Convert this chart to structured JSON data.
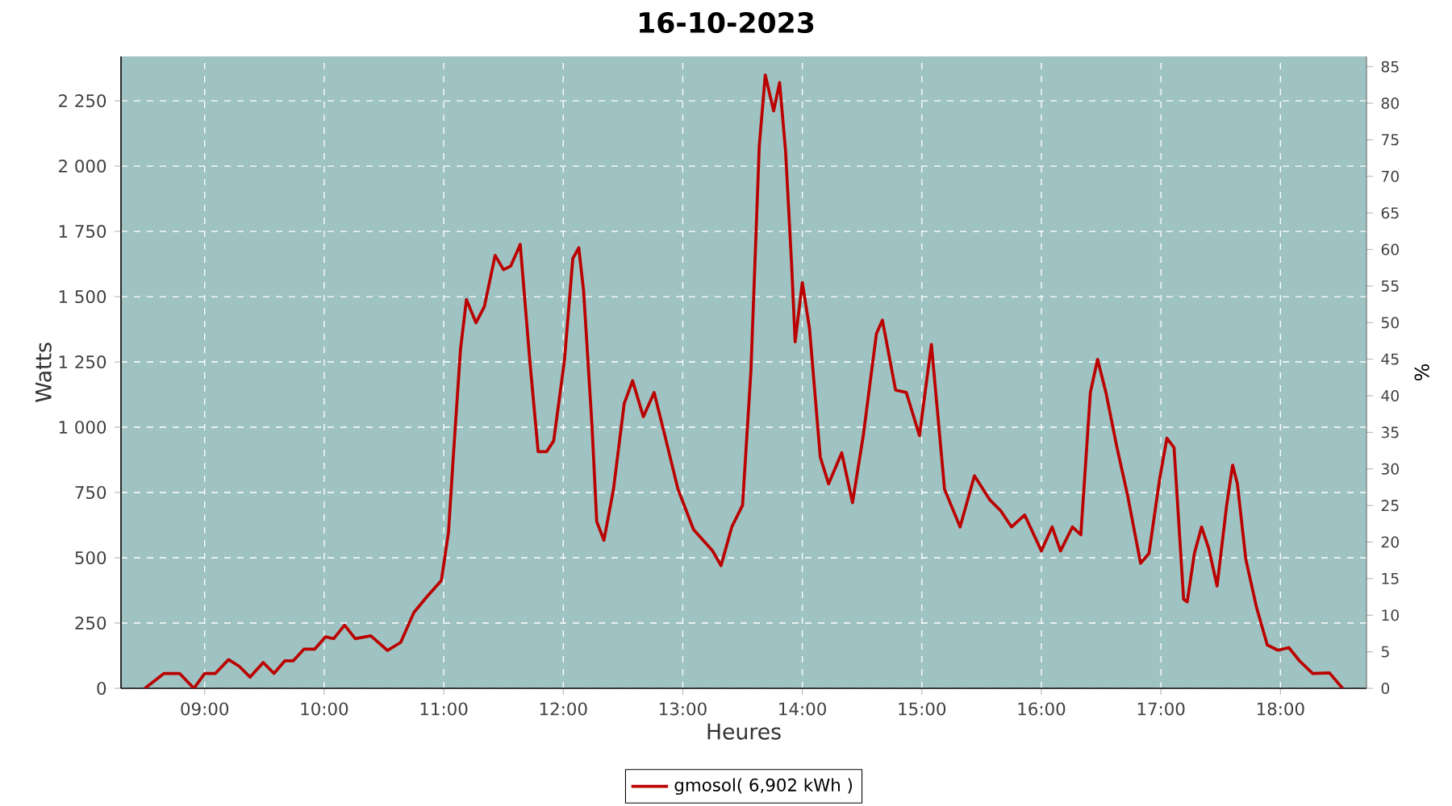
{
  "chart_data": {
    "type": "line",
    "title": "16-10-2023",
    "xlabel": "Heures",
    "ylabel": "Watts",
    "y2label": "%",
    "x": [
      8.5,
      8.66,
      8.79,
      8.91,
      9.0,
      9.09,
      9.2,
      9.29,
      9.38,
      9.49,
      9.58,
      9.67,
      9.74,
      9.83,
      9.92,
      10.01,
      10.08,
      10.17,
      10.26,
      10.39,
      10.53,
      10.64,
      10.75,
      10.86,
      10.98,
      11.04,
      11.08,
      11.14,
      11.19,
      11.27,
      11.34,
      11.43,
      11.5,
      11.56,
      11.64,
      11.72,
      11.79,
      11.86,
      11.92,
      12.01,
      12.08,
      12.13,
      12.17,
      12.24,
      12.28,
      12.34,
      12.42,
      12.51,
      12.58,
      12.67,
      12.76,
      12.85,
      12.96,
      13.09,
      13.25,
      13.32,
      13.41,
      13.5,
      13.57,
      13.64,
      13.69,
      13.76,
      13.81,
      13.86,
      13.91,
      13.94,
      14.0,
      14.06,
      14.15,
      14.22,
      14.33,
      14.42,
      14.51,
      14.62,
      14.67,
      14.78,
      14.87,
      14.98,
      15.08,
      15.19,
      15.32,
      15.44,
      15.57,
      15.66,
      15.75,
      15.86,
      16.0,
      16.09,
      16.16,
      16.26,
      16.33,
      16.41,
      16.47,
      16.54,
      16.63,
      16.72,
      16.83,
      16.9,
      16.99,
      17.05,
      17.11,
      17.19,
      17.22,
      17.28,
      17.34,
      17.4,
      17.47,
      17.55,
      17.6,
      17.64,
      17.71,
      17.8,
      17.89,
      17.98,
      18.07,
      18.16,
      18.27,
      18.41,
      18.52
    ],
    "series": [
      {
        "name": "gmosol( 6,902 kWh )",
        "color": "#bb0000",
        "values": [
          0,
          57,
          57,
          0,
          57,
          57,
          110,
          84,
          43,
          99,
          57,
          105,
          105,
          150,
          150,
          197,
          190,
          242,
          190,
          201,
          145,
          176,
          290,
          351,
          413,
          598,
          886,
          1297,
          1489,
          1400,
          1462,
          1658,
          1603,
          1617,
          1700,
          1256,
          906,
          906,
          948,
          1256,
          1646,
          1687,
          1523,
          1009,
          639,
          567,
          762,
          1091,
          1178,
          1040,
          1133,
          968,
          762,
          608,
          526,
          470,
          618,
          701,
          1215,
          2078,
          2349,
          2211,
          2320,
          2057,
          1626,
          1327,
          1554,
          1379,
          886,
          783,
          902,
          711,
          968,
          1358,
          1410,
          1142,
          1133,
          968,
          1317,
          762,
          618,
          814,
          721,
          680,
          618,
          664,
          526,
          618,
          526,
          618,
          588,
          1133,
          1260,
          1133,
          927,
          742,
          479,
          516,
          804,
          958,
          922,
          341,
          331,
          516,
          618,
          536,
          392,
          701,
          855,
          783,
          495,
          310,
          166,
          146,
          156,
          105,
          57,
          59,
          0
        ]
      }
    ],
    "xlim": [
      8.3,
      18.72
    ],
    "xticks": [
      {
        "value": 9,
        "label": "09:00"
      },
      {
        "value": 10,
        "label": "10:00"
      },
      {
        "value": 11,
        "label": "11:00"
      },
      {
        "value": 12,
        "label": "12:00"
      },
      {
        "value": 13,
        "label": "13:00"
      },
      {
        "value": 14,
        "label": "14:00"
      },
      {
        "value": 15,
        "label": "15:00"
      },
      {
        "value": 16,
        "label": "16:00"
      },
      {
        "value": 17,
        "label": "17:00"
      },
      {
        "value": 18,
        "label": "18:00"
      }
    ],
    "ylim": [
      0,
      2420
    ],
    "yticks": [
      0,
      250,
      500,
      750,
      {
        "value": 1000,
        "label": "1 000"
      },
      {
        "value": 1250,
        "label": "1 250"
      },
      {
        "value": 1500,
        "label": "1 500"
      },
      {
        "value": 1750,
        "label": "1 750"
      },
      {
        "value": 2000,
        "label": "2 000"
      },
      {
        "value": 2250,
        "label": "2 250"
      }
    ],
    "y2lim": [
      0,
      86.4
    ],
    "y2ticks": [
      0,
      5,
      10,
      15,
      20,
      25,
      30,
      35,
      40,
      45,
      50,
      55,
      60,
      65,
      70,
      75,
      80,
      85
    ],
    "grid": true,
    "legend": "bottom",
    "marker": "none",
    "line_style": "solid"
  }
}
